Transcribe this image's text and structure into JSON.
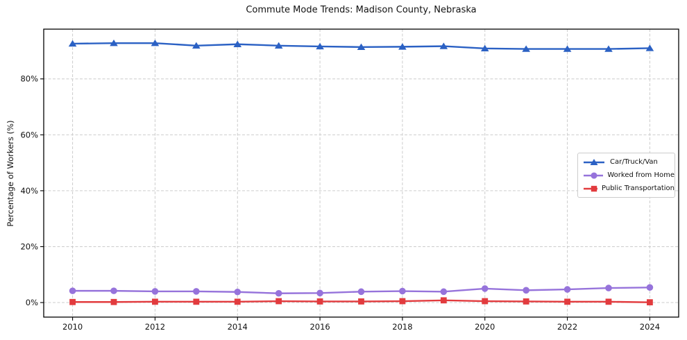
{
  "chart_data": {
    "type": "line",
    "title": "Commute Mode Trends: Madison County, Nebraska",
    "xlabel": "",
    "ylabel": "Percentage of Workers (%)",
    "x": [
      2010,
      2011,
      2012,
      2013,
      2014,
      2015,
      2016,
      2017,
      2018,
      2019,
      2020,
      2021,
      2022,
      2023,
      2024
    ],
    "xticks": [
      2010,
      2012,
      2014,
      2016,
      2018,
      2020,
      2022,
      2024
    ],
    "yticks": [
      0,
      20,
      40,
      60,
      80
    ],
    "ytick_labels": [
      "0%",
      "20%",
      "40%",
      "60%",
      "80%"
    ],
    "xlim": [
      2009.3,
      2024.7
    ],
    "ylim": [
      -5.2,
      97.8
    ],
    "grid": true,
    "grid_style": "dashed",
    "legend_position": "center-right",
    "series": [
      {
        "name": "Car/Truck/Van",
        "marker": "triangle",
        "color": "#2b61c4",
        "values": [
          92.6,
          92.8,
          92.8,
          91.9,
          92.4,
          91.9,
          91.6,
          91.4,
          91.5,
          91.7,
          90.9,
          90.7,
          90.7,
          90.7,
          91.0
        ]
      },
      {
        "name": "Worked from Home",
        "marker": "circle",
        "color": "#9673db",
        "values": [
          4.2,
          4.2,
          4.0,
          4.0,
          3.8,
          3.3,
          3.4,
          3.9,
          4.1,
          3.9,
          5.0,
          4.4,
          4.7,
          5.2,
          5.4
        ]
      },
      {
        "name": "Public Transportation",
        "marker": "square",
        "color": "#e23b3e",
        "values": [
          0.2,
          0.2,
          0.3,
          0.3,
          0.3,
          0.5,
          0.4,
          0.4,
          0.5,
          0.8,
          0.5,
          0.4,
          0.3,
          0.3,
          0.1
        ]
      }
    ]
  },
  "colors": {
    "grid": "#cccccc",
    "spine": "#000000",
    "tick_text": "#111111",
    "background": "#ffffff"
  }
}
